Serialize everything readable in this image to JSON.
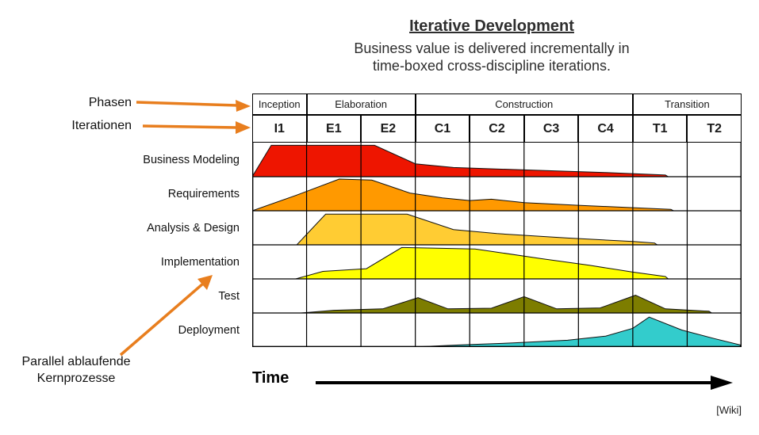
{
  "title": "Iterative Development",
  "subtitle_line1": "Business value is delivered incrementally in",
  "subtitle_line2": "time-boxed cross-discipline iterations.",
  "annotations": {
    "phasen": "Phasen",
    "iterationen": "Iterationen",
    "parallel_line1": "Parallel ablaufende",
    "parallel_line2": "Kernprozesse"
  },
  "phases": [
    {
      "label": "Inception",
      "span": 1
    },
    {
      "label": "Elaboration",
      "span": 2
    },
    {
      "label": "Construction",
      "span": 4
    },
    {
      "label": "Transition",
      "span": 2
    }
  ],
  "iterations": [
    "I1",
    "E1",
    "E2",
    "C1",
    "C2",
    "C3",
    "C4",
    "T1",
    "T2"
  ],
  "disciplines": [
    {
      "label": "Business Modeling",
      "color": "#ee1500",
      "points": [
        [
          0,
          0
        ],
        [
          0.35,
          0.92
        ],
        [
          2.25,
          0.92
        ],
        [
          3.0,
          0.38
        ],
        [
          3.7,
          0.27
        ],
        [
          5.0,
          0.2
        ],
        [
          6.5,
          0.12
        ],
        [
          7.6,
          0.05
        ],
        [
          7.65,
          0
        ]
      ]
    },
    {
      "label": "Requirements",
      "color": "#ff9900",
      "points": [
        [
          0,
          0
        ],
        [
          0.8,
          0.45
        ],
        [
          1.6,
          0.93
        ],
        [
          2.2,
          0.9
        ],
        [
          2.9,
          0.52
        ],
        [
          3.5,
          0.38
        ],
        [
          4.0,
          0.3
        ],
        [
          4.4,
          0.34
        ],
        [
          5.0,
          0.24
        ],
        [
          6.0,
          0.16
        ],
        [
          7.0,
          0.09
        ],
        [
          7.7,
          0.04
        ],
        [
          7.75,
          0
        ]
      ]
    },
    {
      "label": "Analysis & Design",
      "color": "#ffcc33",
      "points": [
        [
          0.82,
          0
        ],
        [
          1.35,
          0.9
        ],
        [
          2.85,
          0.9
        ],
        [
          3.7,
          0.45
        ],
        [
          4.5,
          0.33
        ],
        [
          5.8,
          0.2
        ],
        [
          7.0,
          0.1
        ],
        [
          7.4,
          0.05
        ],
        [
          7.45,
          0
        ]
      ]
    },
    {
      "label": "Implementation",
      "color": "#ffff00",
      "points": [
        [
          0.8,
          0
        ],
        [
          1.3,
          0.22
        ],
        [
          2.1,
          0.3
        ],
        [
          2.75,
          0.92
        ],
        [
          4.1,
          0.88
        ],
        [
          5.3,
          0.6
        ],
        [
          6.2,
          0.4
        ],
        [
          7.0,
          0.2
        ],
        [
          7.6,
          0.07
        ],
        [
          7.65,
          0
        ]
      ]
    },
    {
      "label": "Test",
      "color": "#7d7d00",
      "points": [
        [
          0.9,
          0
        ],
        [
          1.5,
          0.08
        ],
        [
          2.4,
          0.12
        ],
        [
          3.05,
          0.45
        ],
        [
          3.6,
          0.12
        ],
        [
          4.4,
          0.14
        ],
        [
          5.0,
          0.48
        ],
        [
          5.6,
          0.12
        ],
        [
          6.4,
          0.15
        ],
        [
          7.05,
          0.52
        ],
        [
          7.6,
          0.12
        ],
        [
          8.4,
          0.05
        ],
        [
          8.45,
          0
        ]
      ]
    },
    {
      "label": "Deployment",
      "color": "#33cccc",
      "points": [
        [
          2.95,
          0
        ],
        [
          3.8,
          0.06
        ],
        [
          4.8,
          0.12
        ],
        [
          5.8,
          0.2
        ],
        [
          6.5,
          0.32
        ],
        [
          7.0,
          0.55
        ],
        [
          7.3,
          0.88
        ],
        [
          7.9,
          0.5
        ],
        [
          8.5,
          0.25
        ],
        [
          8.98,
          0.06
        ],
        [
          8.98,
          0
        ]
      ]
    }
  ],
  "time_label": "Time",
  "credit": "[Wiki]",
  "colors": {
    "arrow": "#e87e1e",
    "grid": "#000000"
  }
}
